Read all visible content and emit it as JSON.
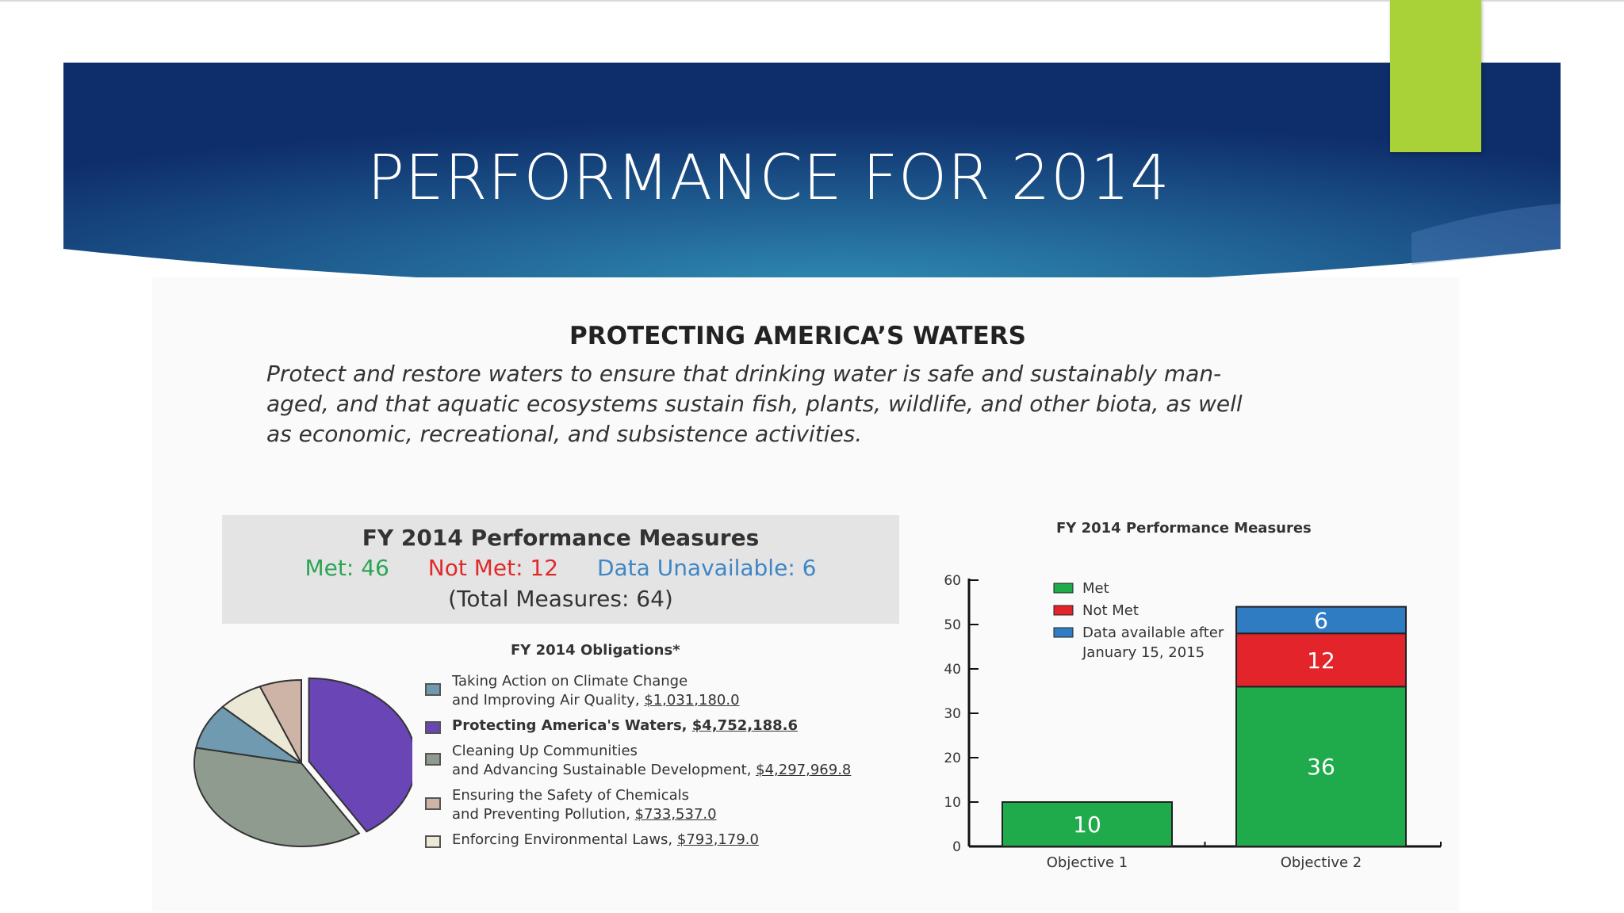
{
  "slide": {
    "title": "PERFORMANCE FOR 2014",
    "banner_colors": [
      "#0e2d6b",
      "#2f8bb3"
    ],
    "accent_color": "#a8d237"
  },
  "section": {
    "title": "PROTECTING AMERICA’S WATERS",
    "description_lines": [
      "Protect and restore waters to ensure that drinking water is safe and sustainably man-",
      "aged, and that aquatic ecosystems sustain fish, plants, wildlife, and other biota, as well",
      "as economic, recreational, and subsistence activities."
    ]
  },
  "measures": {
    "title": "FY 2014 Performance Measures",
    "met": "Met: 46",
    "not_met": "Not Met: 12",
    "unavailable": "Data Unavailable: 6",
    "total": "(Total Measures: 64)"
  },
  "obligations": {
    "title": "FY 2014 Obligations*",
    "items": [
      {
        "line1": "Taking Action on Climate Change",
        "line2": " and Improving Air Quality, ",
        "amount": "$1,031,180.0",
        "color": "#6f9ab0",
        "bold": false
      },
      {
        "line1": "Protecting America's Waters, ",
        "line2": "",
        "amount": "$4,752,188.6",
        "color": "#6a45b5",
        "bold": true
      },
      {
        "line1": "Cleaning Up Communities",
        "line2": "and Advancing Sustainable Development, ",
        "amount": "$4,297,969.8",
        "color": "#8f9b8e",
        "bold": false
      },
      {
        "line1": "Ensuring the Safety of Chemicals",
        "line2": "and Preventing Pollution, ",
        "amount": "$733,537.0",
        "color": "#cdb4a6",
        "bold": false
      },
      {
        "line1": "Enforcing Environmental Laws, ",
        "line2": "",
        "amount": "$793,179.0",
        "color": "#ebe8d6",
        "bold": false
      }
    ]
  },
  "chart_data": [
    {
      "type": "pie",
      "title": "FY 2014 Obligations*",
      "slices": [
        {
          "label": "Protecting America's Waters",
          "value": 4752188.6,
          "color": "#6a45b5"
        },
        {
          "label": "Cleaning Up Communities and Advancing Sustainable Development",
          "value": 4297969.8,
          "color": "#8f9b8e"
        },
        {
          "label": "Taking Action on Climate Change and Improving Air Quality",
          "value": 1031180.0,
          "color": "#6f9ab0"
        },
        {
          "label": "Enforcing Environmental Laws",
          "value": 793179.0,
          "color": "#ebe8d6"
        },
        {
          "label": "Ensuring the Safety of Chemicals and Preventing Pollution",
          "value": 733537.0,
          "color": "#cdb4a6"
        }
      ]
    },
    {
      "type": "bar",
      "stacked": true,
      "title": "FY 2014 Performance Measures",
      "categories": [
        "Objective 1",
        "Objective 2"
      ],
      "series": [
        {
          "name": "Met",
          "values": [
            10,
            36
          ],
          "color": "#1faa4b"
        },
        {
          "name": "Not Met",
          "values": [
            0,
            12
          ],
          "color": "#e3242b"
        },
        {
          "name": "Data available after January 15, 2015",
          "values": [
            0,
            6
          ],
          "color": "#2f7cc3"
        }
      ],
      "ylim": [
        0,
        60
      ],
      "yticks": [
        0,
        10,
        20,
        30,
        40,
        50,
        60
      ],
      "legend_placement": "top-left"
    }
  ]
}
